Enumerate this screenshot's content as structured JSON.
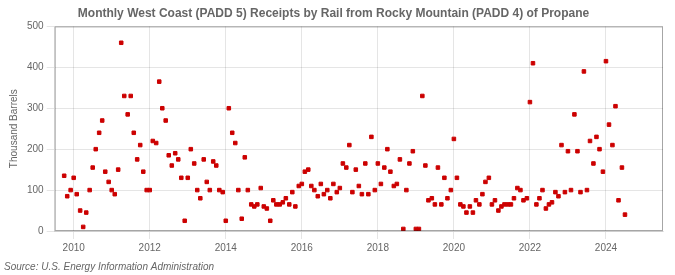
{
  "chart_data": {
    "type": "scatter",
    "title": "Monthly West Coast (PADD 5) Receipts by Rail from Rocky Mountain (PADD 4) of Propane",
    "y_label": "Thousand Barrels",
    "annotations": [
      "Source: U.S. Energy Information Administration"
    ],
    "color": "#cc0000",
    "marker": "square",
    "grid": true,
    "xlim": [
      2009.5,
      2025.5
    ],
    "xticks": [
      2010,
      2012,
      2014,
      2016,
      2018,
      2020,
      2022,
      2024
    ],
    "ylim": [
      0,
      500
    ],
    "yticks": [
      0,
      100,
      200,
      300,
      400,
      500
    ],
    "x": [
      2009.75,
      2009.83,
      2009.92,
      2010.0,
      2010.08,
      2010.17,
      2010.25,
      2010.33,
      2010.42,
      2010.5,
      2010.58,
      2010.67,
      2010.75,
      2010.83,
      2010.92,
      2011.0,
      2011.08,
      2011.17,
      2011.25,
      2011.33,
      2011.42,
      2011.5,
      2011.58,
      2011.67,
      2011.75,
      2011.83,
      2011.92,
      2012.0,
      2012.08,
      2012.17,
      2012.25,
      2012.33,
      2012.42,
      2012.5,
      2012.58,
      2012.67,
      2012.75,
      2012.83,
      2012.92,
      2013.0,
      2013.08,
      2013.17,
      2013.25,
      2013.33,
      2013.42,
      2013.5,
      2013.58,
      2013.67,
      2013.75,
      2013.83,
      2013.92,
      2014.0,
      2014.08,
      2014.17,
      2014.25,
      2014.33,
      2014.42,
      2014.5,
      2014.58,
      2014.67,
      2014.75,
      2014.83,
      2014.92,
      2015.0,
      2015.08,
      2015.17,
      2015.25,
      2015.33,
      2015.42,
      2015.5,
      2015.58,
      2015.67,
      2015.75,
      2015.83,
      2015.92,
      2016.0,
      2016.08,
      2016.17,
      2016.25,
      2016.33,
      2016.42,
      2016.5,
      2016.58,
      2016.67,
      2016.75,
      2016.83,
      2016.92,
      2017.0,
      2017.08,
      2017.17,
      2017.25,
      2017.33,
      2017.42,
      2017.5,
      2017.58,
      2017.67,
      2017.75,
      2017.83,
      2017.92,
      2018.0,
      2018.08,
      2018.17,
      2018.25,
      2018.33,
      2018.42,
      2018.5,
      2018.58,
      2018.67,
      2018.75,
      2018.83,
      2018.92,
      2019.0,
      2019.08,
      2019.17,
      2019.25,
      2019.33,
      2019.42,
      2019.5,
      2019.58,
      2019.67,
      2019.75,
      2019.83,
      2019.92,
      2020.0,
      2020.08,
      2020.17,
      2020.25,
      2020.33,
      2020.42,
      2020.5,
      2020.58,
      2020.67,
      2020.75,
      2020.83,
      2020.92,
      2021.0,
      2021.08,
      2021.17,
      2021.25,
      2021.33,
      2021.42,
      2021.5,
      2021.58,
      2021.67,
      2021.75,
      2021.83,
      2021.92,
      2022.0,
      2022.08,
      2022.17,
      2022.25,
      2022.33,
      2022.42,
      2022.5,
      2022.58,
      2022.67,
      2022.75,
      2022.83,
      2022.92,
      2023.0,
      2023.08,
      2023.17,
      2023.25,
      2023.33,
      2023.42,
      2023.5,
      2023.58,
      2023.67,
      2023.75,
      2023.83,
      2023.92,
      2024.0,
      2024.08,
      2024.17,
      2024.25,
      2024.33,
      2024.42,
      2024.5
    ],
    "values": [
      135,
      85,
      100,
      130,
      90,
      50,
      10,
      45,
      100,
      155,
      200,
      240,
      270,
      145,
      120,
      100,
      90,
      150,
      460,
      330,
      285,
      330,
      240,
      175,
      210,
      145,
      100,
      100,
      220,
      215,
      365,
      300,
      270,
      185,
      160,
      190,
      175,
      130,
      25,
      130,
      200,
      165,
      100,
      80,
      175,
      120,
      100,
      170,
      160,
      100,
      95,
      25,
      300,
      240,
      215,
      100,
      30,
      180,
      100,
      65,
      60,
      65,
      105,
      60,
      55,
      25,
      75,
      65,
      65,
      70,
      80,
      65,
      95,
      60,
      110,
      115,
      145,
      150,
      110,
      100,
      85,
      115,
      90,
      100,
      80,
      115,
      95,
      105,
      165,
      155,
      210,
      95,
      150,
      110,
      90,
      165,
      90,
      230,
      100,
      165,
      115,
      155,
      200,
      145,
      110,
      115,
      175,
      5,
      100,
      165,
      195,
      5,
      5,
      330,
      160,
      75,
      80,
      65,
      155,
      65,
      130,
      80,
      100,
      225,
      130,
      65,
      60,
      45,
      60,
      45,
      75,
      65,
      90,
      120,
      130,
      65,
      75,
      50,
      60,
      65,
      65,
      65,
      80,
      105,
      100,
      75,
      80,
      315,
      410,
      65,
      80,
      100,
      55,
      65,
      70,
      95,
      85,
      210,
      95,
      195,
      100,
      285,
      195,
      95,
      390,
      100,
      220,
      165,
      230,
      200,
      145,
      415,
      260,
      210,
      305,
      75,
      155,
      40
    ]
  }
}
